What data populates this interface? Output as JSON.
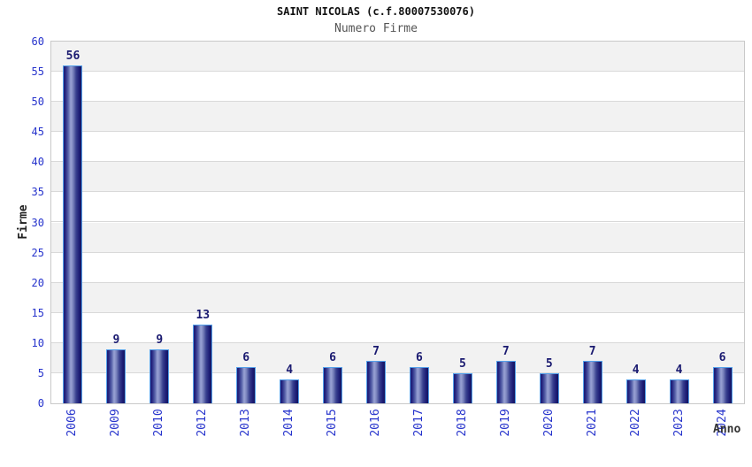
{
  "chart_data": {
    "type": "bar",
    "title": "SAINT NICOLAS (c.f.80007530076)",
    "subtitle": "Numero Firme",
    "categories": [
      "2006",
      "2009",
      "2010",
      "2012",
      "2013",
      "2014",
      "2015",
      "2016",
      "2017",
      "2018",
      "2019",
      "2020",
      "2021",
      "2022",
      "2023",
      "2024"
    ],
    "values": [
      56,
      9,
      9,
      13,
      6,
      4,
      6,
      7,
      6,
      5,
      7,
      5,
      7,
      4,
      4,
      6
    ],
    "xlabel": "Anno",
    "ylabel": "Firme",
    "ylim": [
      0,
      60
    ],
    "ytick_step": 5,
    "yticks": [
      0,
      5,
      10,
      15,
      20,
      25,
      30,
      35,
      40,
      45,
      50,
      55,
      60
    ],
    "grid": "horizontal gridlines every 5 units with alternating gray/white bands, top band gray",
    "legend": "none",
    "colors": {
      "bar_dark": "#1d1d76",
      "bar_light": "#9aa3d4",
      "bar_border": "#54a0ea",
      "tick_label_blue": "#2633cc",
      "value_label_navy": "#1a1a70",
      "band_gray": "#f2f2f2",
      "band_white": "#ffffff",
      "gridline": "#d9d9d9",
      "plot_border": "#c9c9c9",
      "title_color": "#111111",
      "subtitle_color": "#555555",
      "axis_title_color": "#333333"
    }
  }
}
